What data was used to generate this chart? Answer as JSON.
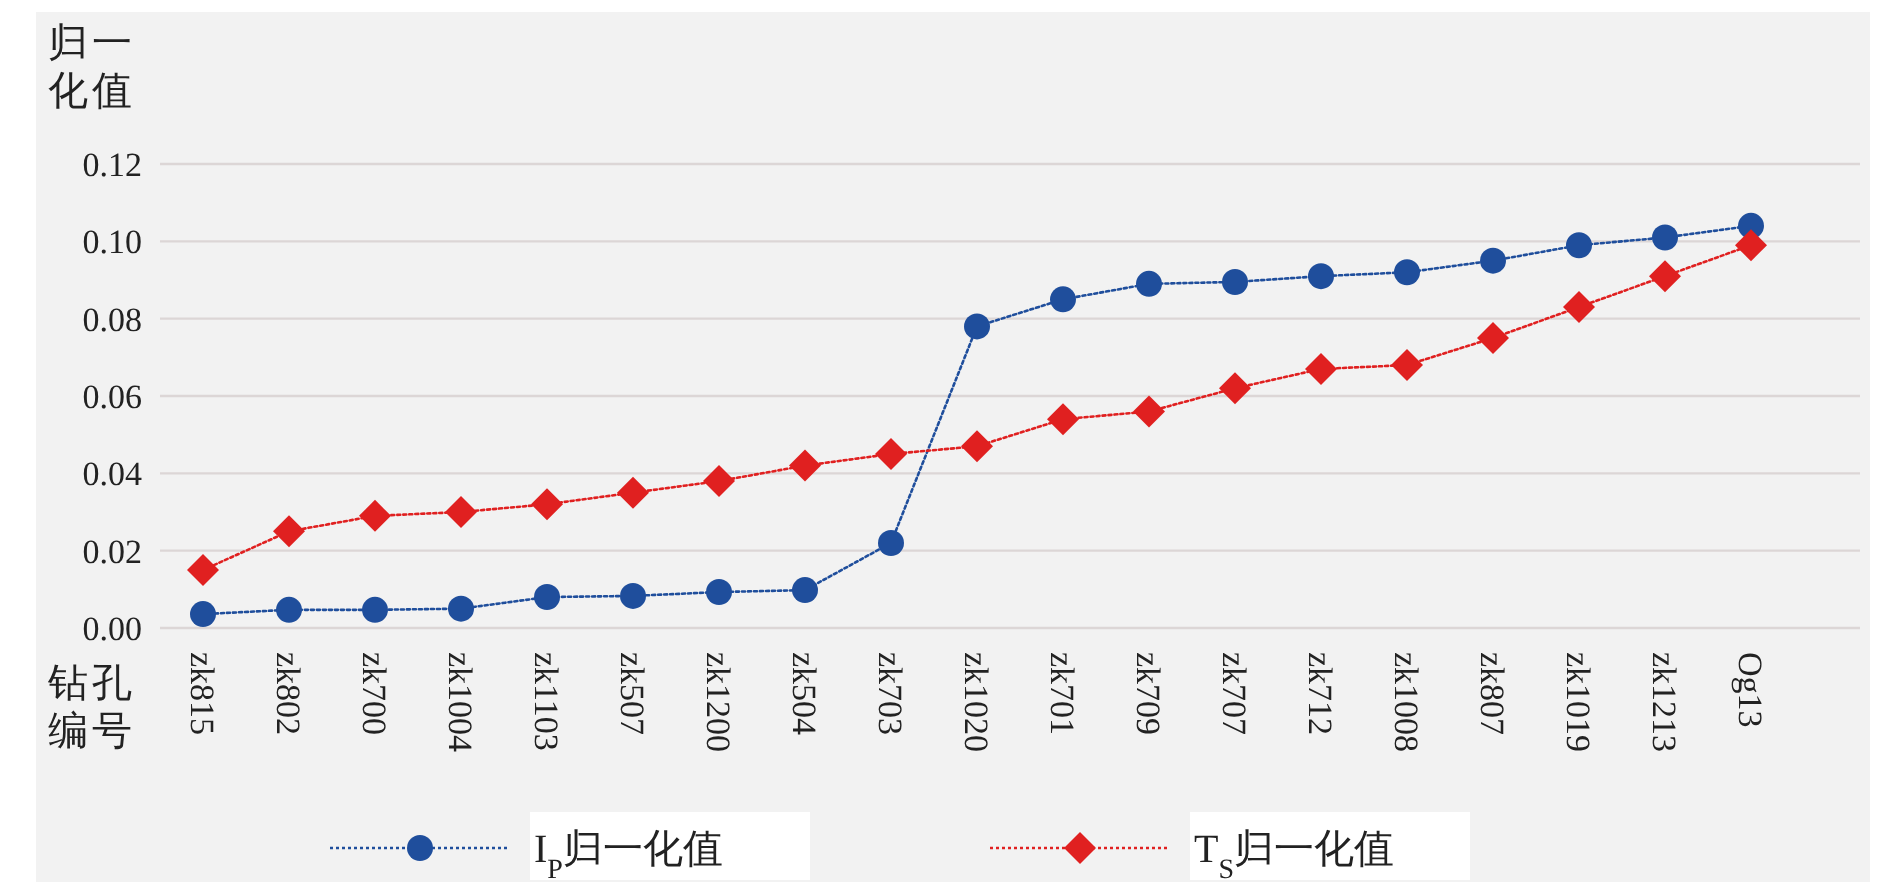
{
  "chart_data": {
    "type": "line",
    "xlabel": "钻孔编号",
    "ylabel": "归一化值",
    "categories": [
      "zk815",
      "zk802",
      "zk700",
      "zk1004",
      "zk1103",
      "zk507",
      "zk1200",
      "zk504",
      "zk703",
      "zk1020",
      "zk701",
      "zk709",
      "zk707",
      "zk712",
      "zk1008",
      "zk807",
      "zk1019",
      "zk1213",
      "Og13"
    ],
    "series": [
      {
        "name": "I$_{P}$归一化值",
        "color": "#1f4e9c",
        "marker": "circle",
        "values": [
          0.0036,
          0.0047,
          0.0047,
          0.005,
          0.008,
          0.0083,
          0.0093,
          0.0098,
          0.022,
          0.078,
          0.085,
          0.089,
          0.0895,
          0.091,
          0.092,
          0.095,
          0.099,
          0.101,
          0.104
        ]
      },
      {
        "name": "T$_{S}$归一化值",
        "color": "#e02020",
        "marker": "diamond",
        "values": [
          0.015,
          0.025,
          0.029,
          0.03,
          0.032,
          0.035,
          0.038,
          0.042,
          0.045,
          0.047,
          0.054,
          0.056,
          0.062,
          0.067,
          0.068,
          0.075,
          0.083,
          0.091,
          0.099
        ]
      }
    ],
    "ylim": [
      0,
      0.12
    ],
    "yticks": [
      {
        "value": 0,
        "label": "0.00"
      },
      {
        "value": 0.02,
        "label": "0.02"
      },
      {
        "value": 0.04,
        "label": "0.04"
      },
      {
        "value": 0.06,
        "label": "0.06"
      },
      {
        "value": 0.08,
        "label": "0.08"
      },
      {
        "value": 0.1,
        "label": "0.10"
      },
      {
        "value": 0.12,
        "label": "0.12"
      }
    ],
    "grid": "y",
    "legend": "bottom",
    "line_style": "dotted"
  }
}
